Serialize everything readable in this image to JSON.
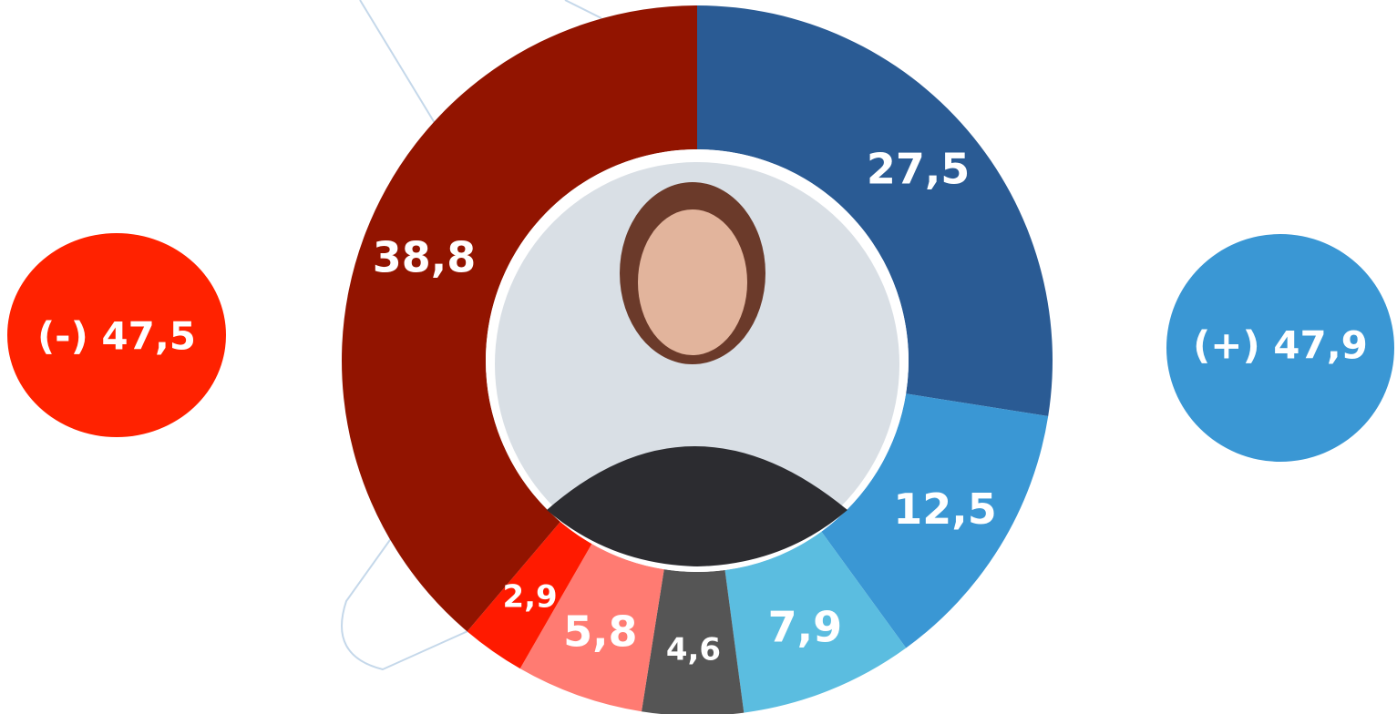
{
  "chart_data": {
    "type": "donut",
    "values": [
      27.5,
      12.5,
      7.9,
      4.6,
      5.8,
      2.9,
      38.8
    ],
    "value_labels": [
      "27,5",
      "12,5",
      "7,9",
      "4,6",
      "5,8",
      "2,9",
      "38,8"
    ],
    "colors": [
      "#2a5b94",
      "#3a97d4",
      "#5bbde0",
      "#555555",
      "#ff7b72",
      "#ff1a00",
      "#921400"
    ],
    "annotations": [
      "(-) 47,5",
      "(+) 47,9"
    ]
  }
}
